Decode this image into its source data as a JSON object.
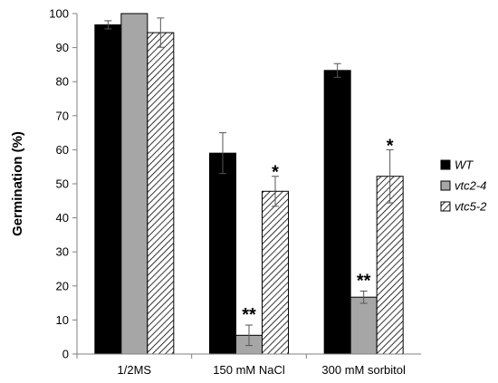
{
  "chart_data": {
    "type": "bar",
    "title": "",
    "xlabel": "",
    "ylabel": "Germination (%)",
    "ylim": [
      0,
      100
    ],
    "yticks": [
      0,
      10,
      20,
      30,
      40,
      50,
      60,
      70,
      80,
      90,
      100
    ],
    "grid": false,
    "legend_position": "right",
    "categories": [
      "1/2MS",
      "150 mM NaCl",
      "300 mM sorbitol"
    ],
    "series": [
      {
        "name": "WT",
        "fill": "solid",
        "color": "#000000",
        "values": [
          96.7,
          59.0,
          83.3
        ],
        "errors": [
          1.2,
          6.0,
          2.0
        ],
        "significance": [
          "",
          "",
          ""
        ]
      },
      {
        "name": "vtc2-4",
        "fill": "solid",
        "color": "#a6a6a6",
        "values": [
          100,
          5.5,
          16.7
        ],
        "errors": [
          0,
          3.0,
          1.8
        ],
        "significance": [
          "",
          "**",
          "**"
        ]
      },
      {
        "name": "vtc5-2",
        "fill": "hatched",
        "color": "#000000",
        "values": [
          94.4,
          47.8,
          52.2
        ],
        "errors": [
          4.3,
          4.4,
          7.8
        ],
        "significance": [
          "",
          "*",
          "*"
        ]
      }
    ]
  }
}
